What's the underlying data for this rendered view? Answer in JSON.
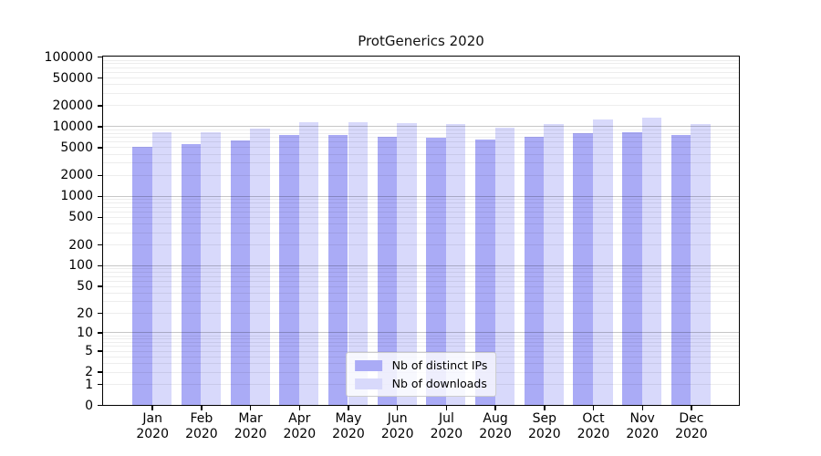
{
  "chart_data": {
    "type": "bar",
    "title": "ProtGenerics 2020",
    "scale": "log1p",
    "grid": true,
    "legend_position": "bottom-center",
    "background_color": "#ffffff",
    "axis_color": "#000000",
    "categories": [
      "Jan",
      "Feb",
      "Mar",
      "Apr",
      "May",
      "Jun",
      "Jul",
      "Aug",
      "Sep",
      "Oct",
      "Nov",
      "Dec"
    ],
    "category_year": "2020",
    "y_ticks": [
      0,
      1,
      2,
      5,
      10,
      20,
      50,
      100,
      200,
      500,
      1000,
      2000,
      5000,
      10000,
      20000,
      50000,
      100000
    ],
    "ylim": [
      0,
      100000
    ],
    "series": [
      {
        "name": "Nb of distinct IPs",
        "color": "#aaabf6",
        "values": [
          5100,
          5500,
          6200,
          7500,
          7600,
          7100,
          6900,
          6400,
          7100,
          7900,
          8300,
          7500
        ]
      },
      {
        "name": "Nb of downloads",
        "color": "#d8d9fb",
        "values": [
          8100,
          8300,
          9300,
          11300,
          11500,
          11000,
          10700,
          9400,
          10700,
          12500,
          13100,
          10800
        ]
      }
    ]
  }
}
